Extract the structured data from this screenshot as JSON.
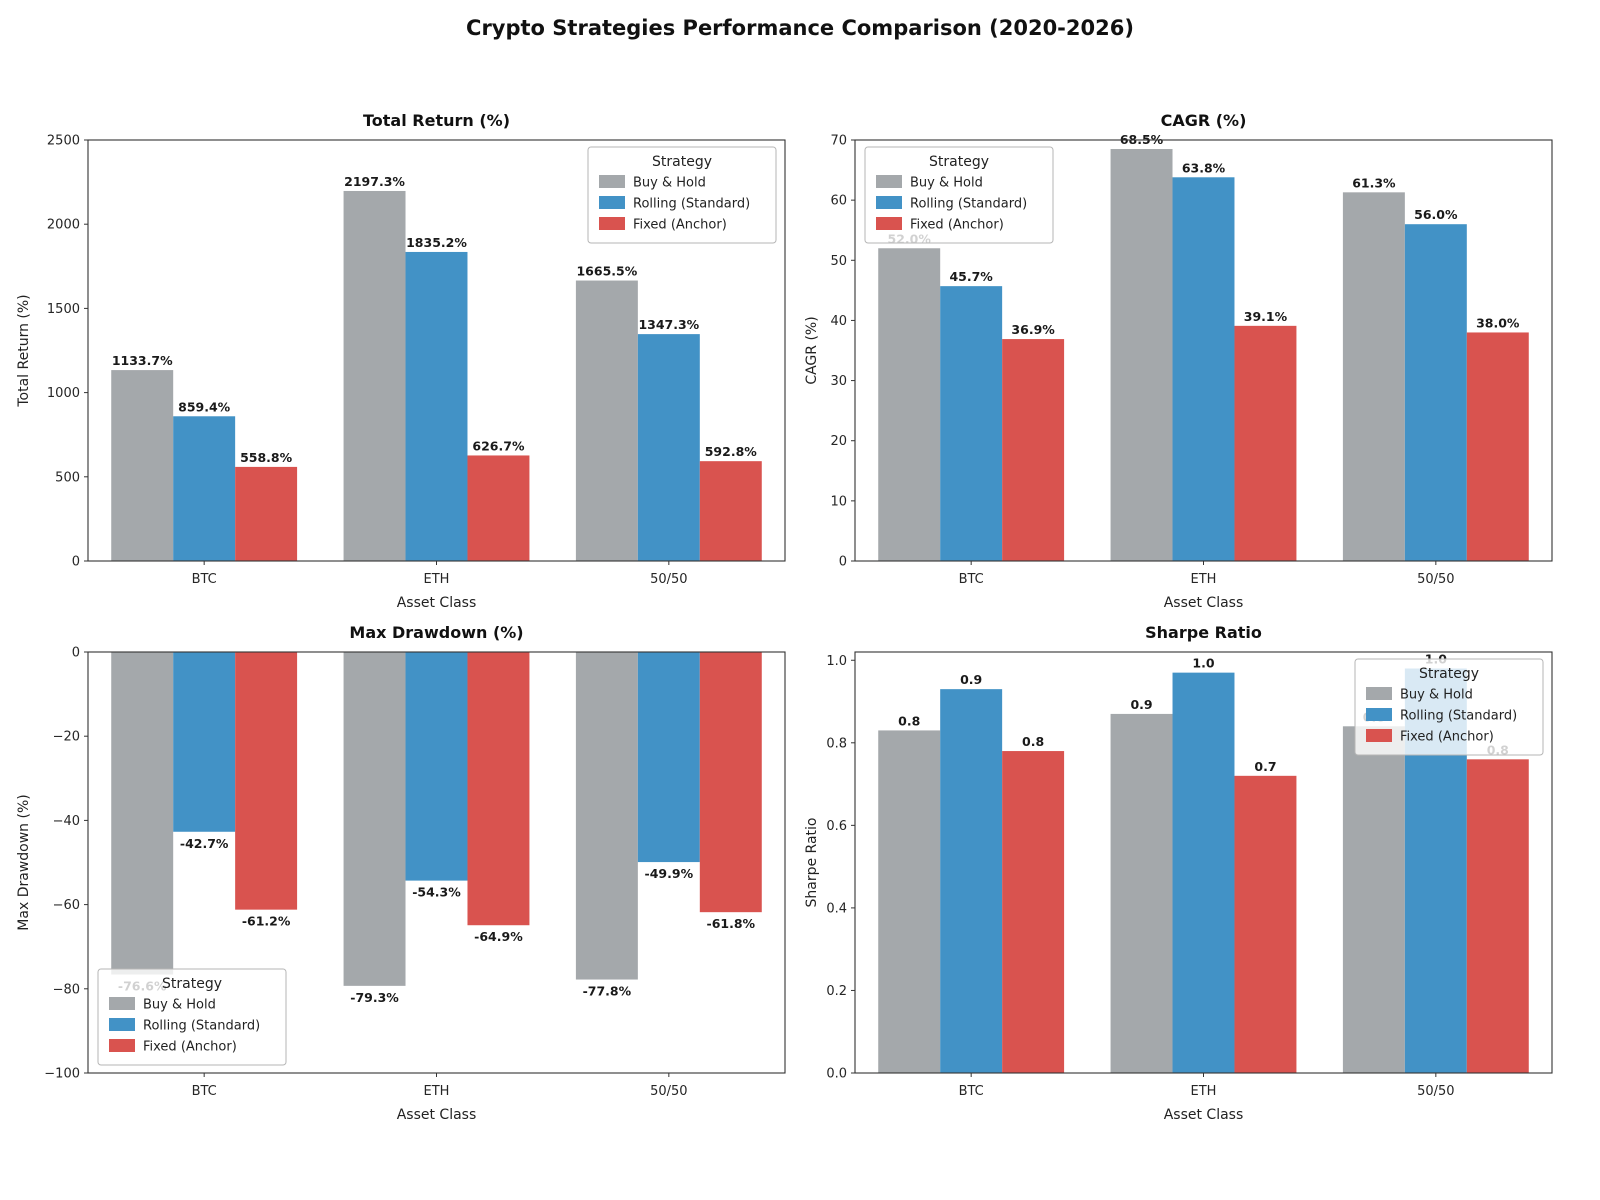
{
  "title": "Crypto Strategies Performance Comparison (2020-2026)",
  "strategy_colors": {
    "Buy & Hold": "#a4a8ab",
    "Rolling (Standard)": "#4292c6",
    "Fixed (Anchor)": "#d9534f"
  },
  "chart_data": [
    {
      "type": "bar",
      "title": "Total Return (%)",
      "xlabel": "Asset Class",
      "ylabel": "Total Return (%)",
      "categories": [
        "BTC",
        "ETH",
        "50/50"
      ],
      "series": [
        {
          "name": "Buy & Hold",
          "color": "#a4a8ab",
          "values": [
            1133.7,
            2197.3,
            1665.5
          ]
        },
        {
          "name": "Rolling (Standard)",
          "color": "#4292c6",
          "values": [
            859.4,
            1835.2,
            1347.3
          ]
        },
        {
          "name": "Fixed (Anchor)",
          "color": "#d9534f",
          "values": [
            558.8,
            626.7,
            592.8
          ]
        }
      ],
      "ylim": [
        0,
        2500
      ],
      "yticks": [
        0,
        500,
        1000,
        1500,
        2000,
        2500
      ],
      "ytick_decimals": 0,
      "grid": false,
      "label_decimals": 1,
      "label_suffix": "%",
      "legend": {
        "title": "Strategy",
        "position": "upper-right"
      }
    },
    {
      "type": "bar",
      "title": "CAGR (%)",
      "xlabel": "Asset Class",
      "ylabel": "CAGR (%)",
      "categories": [
        "BTC",
        "ETH",
        "50/50"
      ],
      "series": [
        {
          "name": "Buy & Hold",
          "color": "#a4a8ab",
          "values": [
            52.0,
            68.5,
            61.3
          ]
        },
        {
          "name": "Rolling (Standard)",
          "color": "#4292c6",
          "values": [
            45.7,
            63.8,
            56.0
          ]
        },
        {
          "name": "Fixed (Anchor)",
          "color": "#d9534f",
          "values": [
            36.9,
            39.1,
            38.0
          ]
        }
      ],
      "ylim": [
        0,
        70
      ],
      "yticks": [
        0,
        10,
        20,
        30,
        40,
        50,
        60,
        70
      ],
      "ytick_decimals": 0,
      "grid": false,
      "label_decimals": 1,
      "label_suffix": "%",
      "legend": {
        "title": "Strategy",
        "position": "upper-left"
      }
    },
    {
      "type": "bar",
      "title": "Max Drawdown (%)",
      "xlabel": "Asset Class",
      "ylabel": "Max Drawdown (%)",
      "categories": [
        "BTC",
        "ETH",
        "50/50"
      ],
      "series": [
        {
          "name": "Buy & Hold",
          "color": "#a4a8ab",
          "values": [
            -76.6,
            -79.3,
            -77.8
          ]
        },
        {
          "name": "Rolling (Standard)",
          "color": "#4292c6",
          "values": [
            -42.7,
            -54.3,
            -49.9
          ]
        },
        {
          "name": "Fixed (Anchor)",
          "color": "#d9534f",
          "values": [
            -61.2,
            -64.9,
            -61.8
          ]
        }
      ],
      "ylim": [
        -100,
        0
      ],
      "yticks": [
        0,
        -20,
        -40,
        -60,
        -80,
        -100
      ],
      "ytick_decimals": 0,
      "grid": false,
      "label_decimals": 1,
      "label_suffix": "%",
      "legend": {
        "title": "Strategy",
        "position": "lower-left"
      }
    },
    {
      "type": "bar",
      "title": "Sharpe Ratio",
      "xlabel": "Asset Class",
      "ylabel": "Sharpe Ratio",
      "categories": [
        "BTC",
        "ETH",
        "50/50"
      ],
      "series": [
        {
          "name": "Buy & Hold",
          "color": "#a4a8ab",
          "values": [
            0.83,
            0.87,
            0.84
          ]
        },
        {
          "name": "Rolling (Standard)",
          "color": "#4292c6",
          "values": [
            0.93,
            0.97,
            0.98
          ]
        },
        {
          "name": "Fixed (Anchor)",
          "color": "#d9534f",
          "values": [
            0.78,
            0.72,
            0.76
          ]
        }
      ],
      "ylim": [
        0,
        1.02
      ],
      "yticks": [
        0.0,
        0.2,
        0.4,
        0.6,
        0.8,
        1.0
      ],
      "ytick_decimals": 1,
      "grid": false,
      "label_decimals": 1,
      "label_suffix": "",
      "legend": {
        "title": "Strategy",
        "position": "upper-right"
      }
    }
  ]
}
